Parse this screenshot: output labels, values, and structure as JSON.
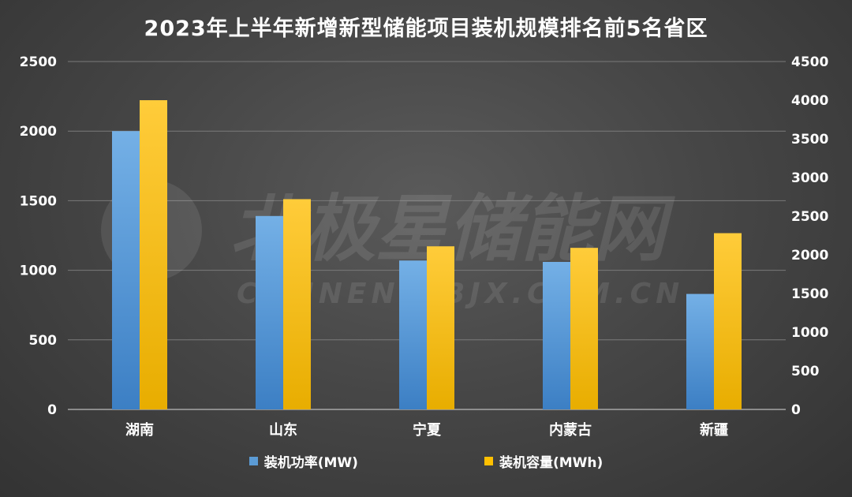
{
  "title": "2023年上半年新增新型储能项目装机规模排名前5名省区",
  "watermark": {
    "main": "北极星储能网",
    "sub": "CHUNENG.BJX.COM.CN"
  },
  "colors": {
    "power": "#5b9bd5",
    "capacity": "#ffc000",
    "axis_text": "#ffffff",
    "grid": "#7a7a7a"
  },
  "chart_data": {
    "type": "bar",
    "title": "2023年上半年新增新型储能项目装机规模排名前5名省区",
    "categories": [
      "湖南",
      "山东",
      "宁夏",
      "内蒙古",
      "新疆"
    ],
    "series": [
      {
        "name": "装机功率(MW)",
        "axis": "left",
        "values": [
          2000,
          1390,
          1070,
          1060,
          830
        ]
      },
      {
        "name": "装机容量(MWh)",
        "axis": "right",
        "values": [
          4000,
          2720,
          2110,
          2090,
          2280
        ]
      }
    ],
    "y_left": {
      "min": 0,
      "max": 2500,
      "ticks": [
        "0",
        "500",
        "1000",
        "1500",
        "2000",
        "2500"
      ]
    },
    "y_right": {
      "min": 0,
      "max": 4500,
      "ticks": [
        "0",
        "500",
        "1000",
        "1500",
        "2000",
        "2500",
        "3000",
        "3500",
        "4000",
        "4500"
      ]
    },
    "grid": true,
    "legend_position": "bottom"
  }
}
